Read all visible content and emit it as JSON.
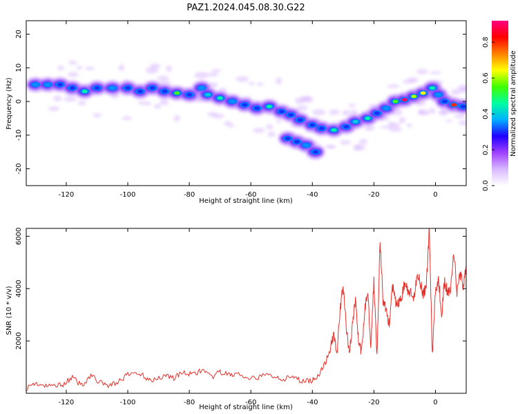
{
  "title": "PAZ1.2024.045.08.30.G22",
  "chart_data": [
    {
      "type": "heatmap",
      "title": "PAZ1.2024.045.08.30.G22",
      "xlabel": "Height of straight line (km)",
      "ylabel": "Frequency (Hz)",
      "xlim": [
        -133,
        10
      ],
      "ylim": [
        -25,
        24
      ],
      "xticks": [
        -120,
        -100,
        -80,
        -60,
        -40,
        -20,
        0
      ],
      "yticks": [
        20,
        10,
        0,
        -10,
        -20
      ],
      "colorbar": {
        "label": "Normalized spectral amplitude",
        "range": [
          0,
          0.92
        ],
        "ticks": [
          0.0,
          0.2,
          0.4,
          0.6,
          0.8
        ],
        "colormap": [
          "#ffffff",
          "#d8b8ff",
          "#a040ff",
          "#2000ff",
          "#00b0ff",
          "#00ffa0",
          "#40ff00",
          "#ffff00",
          "#ff8000",
          "#ff0000",
          "#ff0080"
        ]
      },
      "ridge_points": [
        {
          "x": -130,
          "y": 5,
          "a": 0.35
        },
        {
          "x": -126,
          "y": 5,
          "a": 0.35
        },
        {
          "x": -122,
          "y": 5,
          "a": 0.3
        },
        {
          "x": -118,
          "y": 4,
          "a": 0.3
        },
        {
          "x": -114,
          "y": 3,
          "a": 0.45
        },
        {
          "x": -110,
          "y": 4,
          "a": 0.3
        },
        {
          "x": -105,
          "y": 4,
          "a": 0.35
        },
        {
          "x": -100,
          "y": 4,
          "a": 0.3
        },
        {
          "x": -96,
          "y": 3,
          "a": 0.3
        },
        {
          "x": -92,
          "y": 4,
          "a": 0.3
        },
        {
          "x": -88,
          "y": 3,
          "a": 0.3
        },
        {
          "x": -84,
          "y": 2.5,
          "a": 0.55
        },
        {
          "x": -80,
          "y": 2,
          "a": 0.3
        },
        {
          "x": -76,
          "y": 4,
          "a": 0.35
        },
        {
          "x": -74,
          "y": 2,
          "a": 0.4
        },
        {
          "x": -70,
          "y": 1,
          "a": 0.45
        },
        {
          "x": -66,
          "y": 0,
          "a": 0.35
        },
        {
          "x": -62,
          "y": -1,
          "a": 0.3
        },
        {
          "x": -58,
          "y": -2,
          "a": 0.3
        },
        {
          "x": -54,
          "y": -1.5,
          "a": 0.45
        },
        {
          "x": -50,
          "y": -3,
          "a": 0.3
        },
        {
          "x": -47,
          "y": -4,
          "a": 0.3
        },
        {
          "x": -44,
          "y": -5.5,
          "a": 0.3
        },
        {
          "x": -40,
          "y": -7,
          "a": 0.3
        },
        {
          "x": -37,
          "y": -8,
          "a": 0.3
        },
        {
          "x": -33,
          "y": -8.5,
          "a": 0.45
        },
        {
          "x": -29,
          "y": -7.5,
          "a": 0.3
        },
        {
          "x": -26,
          "y": -6,
          "a": 0.4
        },
        {
          "x": -22,
          "y": -5,
          "a": 0.45
        },
        {
          "x": -19,
          "y": -3.5,
          "a": 0.3
        },
        {
          "x": -16,
          "y": -2,
          "a": 0.35
        },
        {
          "x": -13,
          "y": 0,
          "a": 0.55
        },
        {
          "x": -10,
          "y": 0.5,
          "a": 0.9
        },
        {
          "x": -7,
          "y": 1.5,
          "a": 0.6
        },
        {
          "x": -4,
          "y": 2.5,
          "a": 0.65
        },
        {
          "x": -1,
          "y": 4,
          "a": 0.45
        },
        {
          "x": 1,
          "y": 2,
          "a": 0.35
        },
        {
          "x": 3,
          "y": 0,
          "a": 0.3
        },
        {
          "x": 6,
          "y": -1,
          "a": 0.8
        },
        {
          "x": 9,
          "y": -1.5,
          "a": 0.3
        }
      ],
      "branch_points": [
        {
          "x": -48,
          "y": -11,
          "a": 0.3
        },
        {
          "x": -45,
          "y": -12,
          "a": 0.3
        },
        {
          "x": -42,
          "y": -13,
          "a": 0.35
        },
        {
          "x": -39,
          "y": -15,
          "a": 0.3
        }
      ]
    },
    {
      "type": "line",
      "xlabel": "Height of straight line (km)",
      "ylabel": "SNR (10 * v/v)",
      "xlim": [
        -133,
        10
      ],
      "ylim": [
        0,
        6300
      ],
      "xticks": [
        -120,
        -100,
        -80,
        -60,
        -40,
        -20,
        0
      ],
      "yticks": [
        2000,
        4000,
        6000
      ],
      "color": "#e8302a",
      "series": [
        {
          "x": [
            -133,
            -130,
            -127,
            -124,
            -121,
            -118,
            -115,
            -112,
            -109,
            -106,
            -103,
            -100,
            -97,
            -94,
            -91,
            -88,
            -85,
            -82,
            -79,
            -76,
            -73,
            -70,
            -67,
            -64,
            -61,
            -58,
            -55,
            -52,
            -49,
            -46,
            -43,
            -40,
            -38,
            -36,
            -34,
            -33,
            -32,
            -31,
            -30,
            -29,
            -28,
            -27,
            -26,
            -25,
            -24,
            -23,
            -22,
            -21,
            -20,
            -19,
            -18,
            -17,
            -16,
            -15,
            -14,
            -13,
            -12,
            -11,
            -10,
            -9,
            -8,
            -7,
            -6,
            -5,
            -4,
            -3,
            -2,
            -1,
            0,
            1,
            2,
            3,
            4,
            5,
            6,
            7,
            8,
            9,
            10
          ],
          "y": [
            200,
            400,
            250,
            300,
            350,
            600,
            300,
            700,
            400,
            300,
            450,
            700,
            800,
            600,
            500,
            700,
            600,
            800,
            700,
            900,
            600,
            800,
            700,
            750,
            500,
            600,
            700,
            650,
            550,
            600,
            450,
            500,
            700,
            1100,
            1800,
            2300,
            1500,
            3100,
            4200,
            2500,
            1500,
            2600,
            3600,
            2000,
            1500,
            3200,
            3900,
            1800,
            4300,
            1500,
            5800,
            3500,
            3200,
            2600,
            4100,
            3500,
            3400,
            3700,
            4200,
            3900,
            3800,
            3500,
            4600,
            4300,
            3800,
            4000,
            6300,
            1500,
            3900,
            4400,
            3000,
            4300,
            3800,
            4000,
            5400,
            3900,
            4600,
            4100,
            4900
          ]
        }
      ]
    }
  ]
}
